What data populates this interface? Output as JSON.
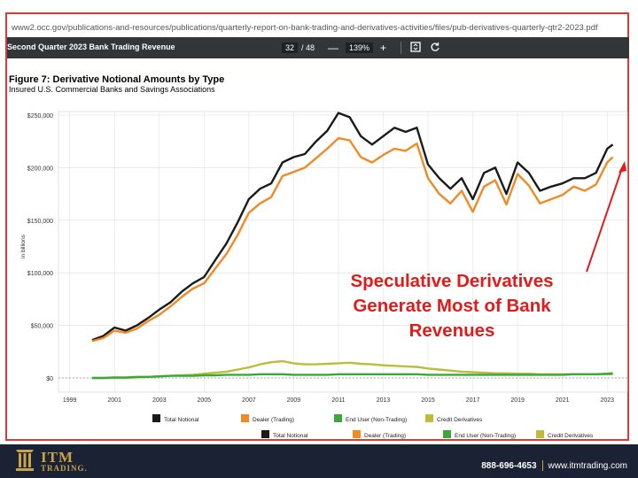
{
  "browser": {
    "url": "www2.occ.gov/publications-and-resources/publications/quarterly-report-on-bank-trading-and-derivatives-activities/files/pub-derivatives-quarterly-qtr2-2023.pdf"
  },
  "viewer": {
    "doc_title": "Second Quarter 2023 Bank Trading Revenue",
    "page_current": "32",
    "page_total": "/ 48",
    "zoom": "139%",
    "minus": "—",
    "plus": "+"
  },
  "figure": {
    "title": "Figure 7: Derivative Notional Amounts by Type",
    "subtitle": "Insured U.S. Commercial Banks and Savings Associations"
  },
  "callout": {
    "line1": "Speculative Derivatives",
    "line2": "Generate Most of Bank",
    "line3": "Revenues"
  },
  "footer": {
    "brand": "ITM",
    "brand_sub": "TRADING.",
    "phone": "888-696-4653",
    "website": "www.itmtrading.com"
  },
  "colors": {
    "total": "#1a1a1a",
    "dealer": "#f08a24",
    "enduser": "#3aa83a",
    "credit": "#bdbd3a",
    "callout": "#e21b1b",
    "footer_bg": "#1a2233",
    "gold": "#c9a24a"
  },
  "chart_data": {
    "type": "line",
    "ylabel": "in billions",
    "ylim": [
      0,
      250000
    ],
    "yticks": [
      "$0",
      "$50,000",
      "$100,000",
      "$150,000",
      "$200,000",
      "$250,000"
    ],
    "xticks": [
      "1999",
      "2001",
      "2003",
      "2005",
      "2007",
      "2009",
      "2011",
      "2013",
      "2015",
      "2017",
      "2019",
      "2021",
      "2023"
    ],
    "xlim": [
      1998.5,
      2023.9
    ],
    "grid": true,
    "legend_position": "bottom",
    "legend_repeated": true,
    "x": [
      2000.0,
      2000.5,
      2001.0,
      2001.5,
      2002.0,
      2002.5,
      2003.0,
      2003.5,
      2004.0,
      2004.5,
      2005.0,
      2005.5,
      2006.0,
      2006.5,
      2007.0,
      2007.5,
      2008.0,
      2008.5,
      2009.0,
      2009.5,
      2010.0,
      2010.5,
      2011.0,
      2011.5,
      2012.0,
      2012.5,
      2013.0,
      2013.5,
      2014.0,
      2014.5,
      2015.0,
      2015.5,
      2016.0,
      2016.5,
      2017.0,
      2017.5,
      2018.0,
      2018.5,
      2019.0,
      2019.5,
      2020.0,
      2020.5,
      2021.0,
      2021.5,
      2022.0,
      2022.5,
      2023.0,
      2023.25
    ],
    "series": [
      {
        "name": "Total Notional",
        "color": "#1a1a1a",
        "values": [
          36000,
          40000,
          48000,
          45000,
          50000,
          57000,
          65000,
          72000,
          82000,
          90000,
          96000,
          112000,
          128000,
          148000,
          170000,
          180000,
          185000,
          205000,
          210000,
          213000,
          225000,
          235000,
          252000,
          248000,
          230000,
          222000,
          230000,
          238000,
          234000,
          238000,
          203000,
          190000,
          180000,
          190000,
          170000,
          195000,
          200000,
          175000,
          205000,
          195000,
          178000,
          182000,
          185000,
          190000,
          190000,
          195000,
          218000,
          222000
        ]
      },
      {
        "name": "Dealer (Trading)",
        "color": "#f08a24",
        "values": [
          35000,
          38000,
          45000,
          43000,
          47000,
          54000,
          60000,
          68000,
          77000,
          85000,
          90000,
          104000,
          118000,
          136000,
          157000,
          166000,
          172000,
          192000,
          196000,
          200000,
          209000,
          218000,
          228000,
          226000,
          210000,
          205000,
          212000,
          218000,
          216000,
          223000,
          190000,
          175000,
          166000,
          178000,
          158000,
          182000,
          188000,
          165000,
          194000,
          183000,
          166000,
          170000,
          174000,
          182000,
          178000,
          184000,
          205000,
          210000
        ]
      },
      {
        "name": "End User (Non-Trading)",
        "color": "#3aa83a",
        "values": [
          0,
          0,
          500,
          500,
          1000,
          1000,
          1500,
          2000,
          2000,
          2000,
          2500,
          2500,
          3000,
          3000,
          3000,
          3500,
          3500,
          3500,
          3000,
          3000,
          3000,
          3000,
          3500,
          3500,
          3500,
          3500,
          3500,
          3500,
          3500,
          3500,
          3000,
          3000,
          3000,
          3000,
          3000,
          3000,
          3000,
          3000,
          3000,
          3000,
          3000,
          3000,
          3000,
          3500,
          3500,
          3500,
          4000,
          4500
        ]
      },
      {
        "name": "Credit Derivatives",
        "color": "#bdbd3a",
        "values": [
          0,
          0,
          0,
          0,
          500,
          1000,
          1500,
          2000,
          2500,
          3000,
          4000,
          5000,
          6000,
          8000,
          10000,
          13000,
          15000,
          16000,
          14000,
          13000,
          13000,
          13500,
          14000,
          14500,
          13500,
          13000,
          12000,
          11500,
          11000,
          10500,
          9000,
          8000,
          7000,
          6000,
          5500,
          5000,
          4500,
          4500,
          4000,
          4000,
          3500,
          3500,
          3500,
          3500,
          3500,
          3500,
          3500,
          3500
        ]
      }
    ]
  }
}
